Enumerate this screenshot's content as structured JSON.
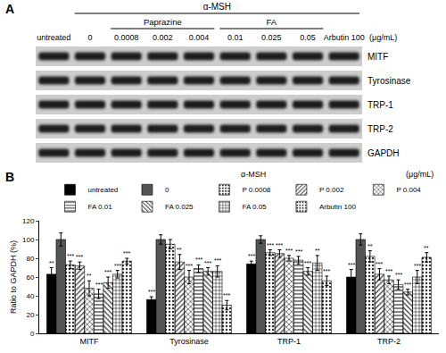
{
  "panel_a": {
    "label": "A",
    "treatment": "α-MSH",
    "lanes": [
      "untreated",
      "0",
      {
        "group": "Paprazine",
        "lanes": [
          "0.0008",
          "0.002",
          "0.004"
        ]
      },
      {
        "group": "FA",
        "lanes": [
          "0.01",
          "0.025",
          "0.05"
        ]
      },
      "Arbutin 100"
    ],
    "unit": "(μg/mL)",
    "rows": [
      "MITF",
      "Tyrosinase",
      "TRP-1",
      "TRP-2",
      "GAPDH"
    ]
  },
  "chart_data": {
    "label": "B",
    "type": "bar",
    "treatment": "α-MSH",
    "unit": "(μg/mL)",
    "y_label": "Ratio to GAPDH (%)",
    "categories": [
      "MITF",
      "Tyrosinase",
      "TRP-1",
      "TRP-2"
    ],
    "series": [
      {
        "name": "untreated",
        "color": "#000000",
        "values": [
          63,
          36,
          74,
          60
        ],
        "errors": [
          7,
          3,
          3,
          8
        ],
        "significance": [
          "**",
          "***",
          "***",
          "***"
        ]
      },
      {
        "name": "0",
        "color": "#555555",
        "values": [
          100,
          100,
          100,
          100
        ],
        "errors": [
          7,
          5,
          4,
          6
        ],
        "significance": [
          null,
          null,
          null,
          null
        ]
      },
      {
        "name": "P 0.0008",
        "color": "#d0d0d0",
        "values": [
          73,
          95,
          86,
          82
        ],
        "errors": [
          4,
          5,
          3,
          6
        ],
        "significance": [
          "***",
          null,
          "***",
          "**"
        ]
      },
      {
        "name": "P 0.002",
        "color": "#d0d0d0",
        "values": [
          72,
          76,
          85,
          63
        ],
        "errors": [
          4,
          8,
          4,
          6
        ],
        "significance": [
          "***",
          "**",
          "***",
          "***"
        ]
      },
      {
        "name": "P 0.004",
        "color": "#d0d0d0",
        "values": [
          48,
          60,
          80,
          57
        ],
        "errors": [
          8,
          7,
          3,
          4
        ],
        "significance": [
          "**",
          "***",
          "***",
          "***"
        ]
      },
      {
        "name": "FA 0.01",
        "color": "#ffffff",
        "values": [
          42,
          69,
          78,
          52
        ],
        "errors": [
          5,
          4,
          4,
          5
        ],
        "significance": [
          "***",
          "***",
          "***",
          "***"
        ]
      },
      {
        "name": "FA 0.025",
        "color": "#ffffff",
        "values": [
          54,
          66,
          66,
          44
        ],
        "errors": [
          6,
          4,
          4,
          3
        ],
        "significance": [
          "***",
          "***",
          "***",
          "***"
        ]
      },
      {
        "name": "FA 0.05",
        "color": "#ffffff",
        "values": [
          63,
          66,
          75,
          60
        ],
        "errors": [
          4,
          6,
          8,
          7
        ],
        "significance": [
          "***",
          "***",
          "**",
          "***"
        ]
      },
      {
        "name": "Arbutin 100",
        "color": "#ffffff",
        "values": [
          77,
          30,
          56,
          81
        ],
        "errors": [
          3,
          5,
          5,
          5
        ],
        "significance": [
          "***",
          "***",
          "***",
          "**"
        ]
      }
    ],
    "ylim": [
      0,
      120
    ],
    "yticks": [
      0,
      20,
      40,
      60,
      80,
      100,
      120
    ],
    "grid": false,
    "legend": "top"
  }
}
